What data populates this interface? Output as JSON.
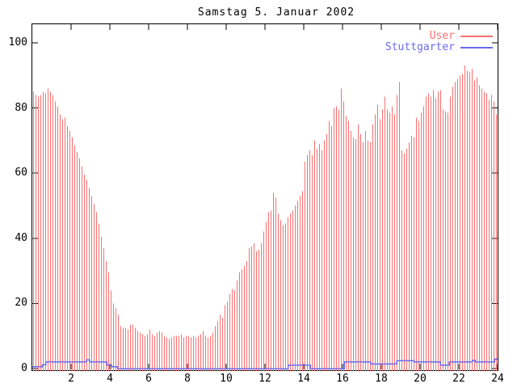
{
  "page": {
    "background": "#ffffff",
    "axis_color": "#000000"
  },
  "chart_data": {
    "type": "bar",
    "title": "Samstag 5. Januar 2002",
    "xlabel": "",
    "ylabel": "",
    "xlim": [
      0,
      24
    ],
    "ylim": [
      0,
      105.7
    ],
    "xticks": [
      2,
      4,
      6,
      8,
      10,
      12,
      14,
      16,
      18,
      20,
      22,
      24
    ],
    "yticks": [
      0,
      20,
      40,
      60,
      80,
      100
    ],
    "grid": false,
    "legend_position": "top-right-inside",
    "series": [
      {
        "name": "User",
        "style": "impulses",
        "color": "#f87070",
        "x_start_hours": 0.0625,
        "x_step_hours": 0.125,
        "values": [
          85,
          84,
          83.5,
          84,
          85,
          84.5,
          86,
          85,
          84,
          82,
          80.5,
          78,
          76.5,
          77,
          74.5,
          73,
          71,
          68.5,
          66.5,
          64.5,
          62,
          59.5,
          58,
          55.5,
          53,
          50.5,
          48,
          44.5,
          40.5,
          37,
          33,
          29.5,
          24,
          20,
          18.5,
          16.5,
          13,
          12.5,
          12.5,
          12,
          13.5,
          13.5,
          12.5,
          11.5,
          11,
          10.5,
          10,
          10.5,
          12,
          10.5,
          10,
          11,
          11.5,
          11,
          10,
          9.5,
          9,
          9.5,
          10,
          10,
          10,
          10.5,
          9.5,
          10,
          10,
          9.5,
          10,
          9.5,
          10,
          10.5,
          11.5,
          10,
          9.5,
          10,
          11,
          13,
          14.5,
          16.5,
          15.5,
          19.5,
          20.5,
          23,
          24.5,
          24,
          27,
          29.5,
          30.5,
          31.5,
          33,
          37,
          37.5,
          38.5,
          36,
          36.5,
          38.5,
          42,
          45,
          48,
          48.5,
          54,
          52.5,
          47.5,
          45.5,
          44,
          44.5,
          46.5,
          47.5,
          48.5,
          50,
          51.5,
          53,
          54.5,
          63.5,
          65.5,
          67,
          65.5,
          70,
          67.5,
          69,
          67,
          70,
          72,
          76,
          74.5,
          80,
          80.5,
          79.5,
          86,
          82,
          77.5,
          76,
          73,
          71,
          70.5,
          75,
          72,
          69.5,
          73,
          70,
          69.5,
          75,
          78,
          81,
          76.5,
          79.5,
          83.5,
          79.5,
          78.5,
          80.5,
          78,
          84,
          88,
          67,
          66,
          67.5,
          69.5,
          71.5,
          71,
          77,
          76,
          78.5,
          80.5,
          83.5,
          84.5,
          83.5,
          85.5,
          83,
          85,
          85.5,
          79.5,
          79,
          78.5,
          83.5,
          86.5,
          88,
          89,
          90,
          90.5,
          93,
          91.5,
          91,
          92,
          88.5,
          89.5,
          87,
          86,
          85,
          84.5,
          82.5,
          84,
          82,
          78
        ]
      },
      {
        "name": "Stuttgarter",
        "style": "steps",
        "color": "#6a6af0",
        "points_hour_value": [
          [
            0,
            0.5
          ],
          [
            0.5,
            1.2
          ],
          [
            0.7,
            2
          ],
          [
            2.8,
            2.7
          ],
          [
            2.95,
            2
          ],
          [
            3.85,
            1
          ],
          [
            4.1,
            0.5
          ],
          [
            4.4,
            0
          ],
          [
            13.2,
            1
          ],
          [
            14.35,
            0
          ],
          [
            16.1,
            2
          ],
          [
            17.45,
            1.4
          ],
          [
            18.8,
            2.4
          ],
          [
            19.7,
            2
          ],
          [
            21.05,
            1
          ],
          [
            21.5,
            2
          ],
          [
            22.7,
            2.6
          ],
          [
            22.85,
            2
          ],
          [
            23.85,
            2.9
          ],
          [
            24,
            2.9
          ]
        ]
      }
    ]
  }
}
